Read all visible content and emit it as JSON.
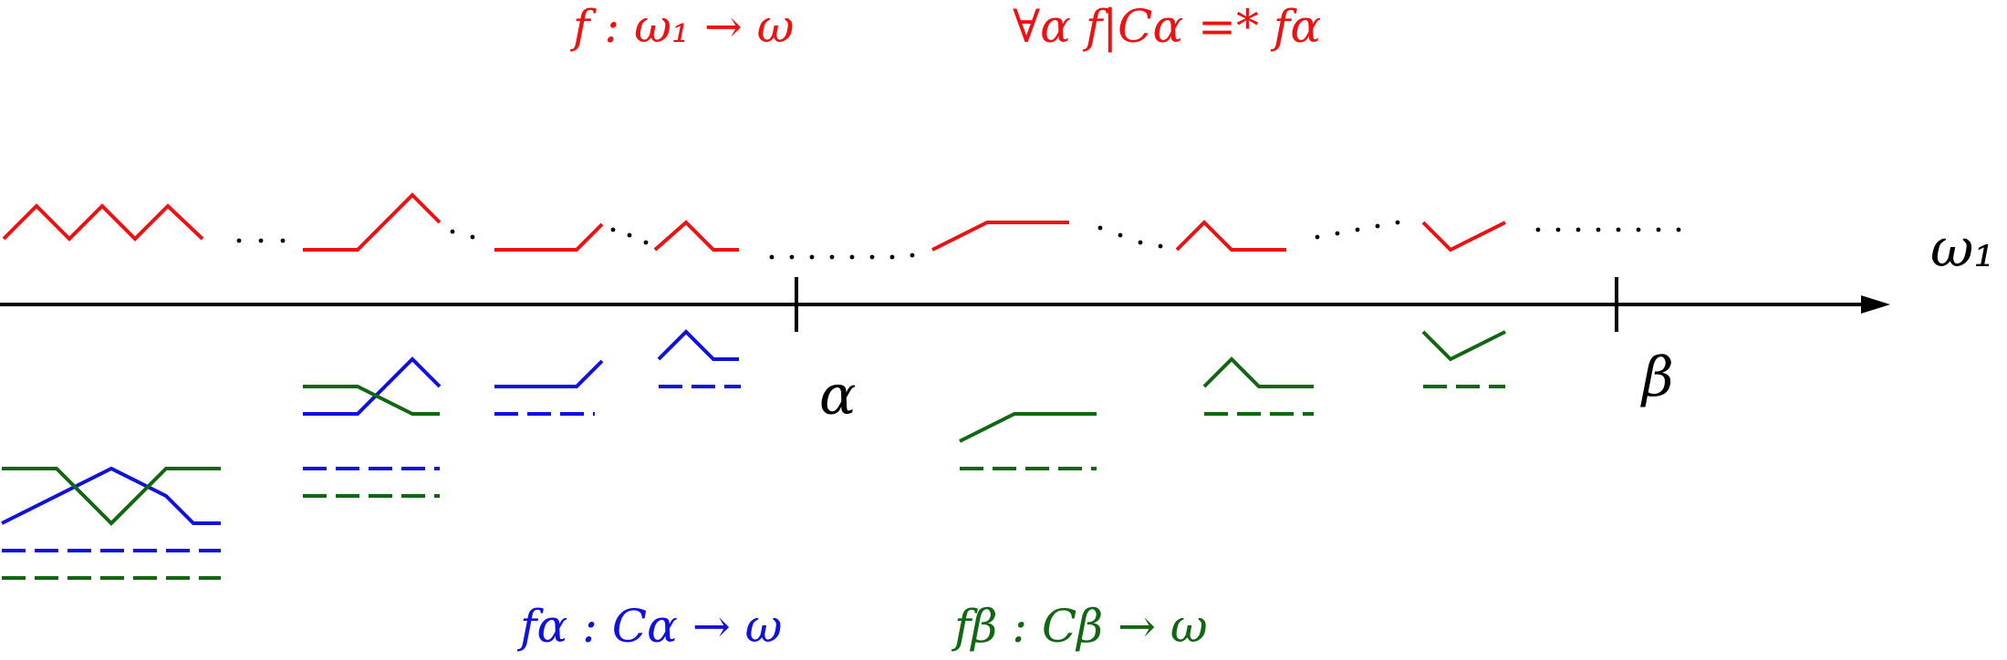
{
  "colors": {
    "axis": "#000000",
    "global": "#ee1111",
    "alpha": "#1111dd",
    "beta": "#116611",
    "dots": "#000000"
  },
  "header": {
    "left_formula": "f : ω₁ → ω",
    "right_formula": "∀α f|Cα =* fα"
  },
  "axis": {
    "label": "ω₁",
    "tick_alpha_label": "α",
    "tick_beta_label": "β"
  },
  "footer": {
    "alpha_formula": "fα : Cα → ω",
    "beta_formula": "fβ : Cβ → ω"
  }
}
